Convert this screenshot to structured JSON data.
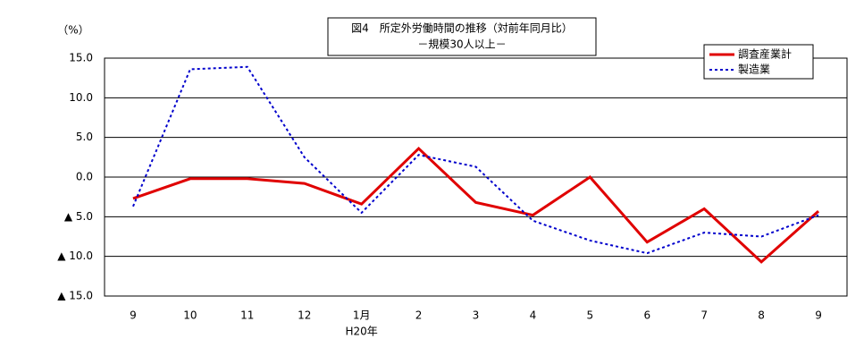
{
  "chart_data": {
    "type": "line",
    "title": "図4　所定外労働時間の推移（対前年同月比）",
    "subtitle": "－規模30人以上－",
    "y_unit": "（%）",
    "x_annotation": "H20年",
    "categories": [
      "9",
      "10",
      "11",
      "12",
      "1月",
      "2",
      "3",
      "4",
      "5",
      "6",
      "7",
      "8",
      "9"
    ],
    "series": [
      {
        "name": "調査産業計",
        "color": "#e00000",
        "style": "solid",
        "values": [
          -2.7,
          -0.2,
          -0.2,
          -0.8,
          -3.4,
          3.6,
          -3.2,
          -4.8,
          0.0,
          -8.2,
          -4.0,
          -10.7,
          -4.3
        ]
      },
      {
        "name": "製造業",
        "color": "#0000cc",
        "style": "dotted",
        "values": [
          -3.7,
          13.6,
          13.9,
          2.5,
          -4.5,
          2.8,
          1.3,
          -5.5,
          -8.0,
          -9.6,
          -7.0,
          -7.5,
          -4.8
        ]
      }
    ],
    "ylim": [
      -15,
      15
    ],
    "yticks": [
      {
        "value": -15,
        "label": "▲ 15.0"
      },
      {
        "value": -10,
        "label": "▲ 10.0"
      },
      {
        "value": -5,
        "label": "▲ 5.0"
      },
      {
        "value": 0,
        "label": "0.0"
      },
      {
        "value": 5,
        "label": "5.0"
      },
      {
        "value": 10,
        "label": "10.0"
      },
      {
        "value": 15,
        "label": "15.0"
      }
    ],
    "grid": true,
    "legend": "upper right"
  }
}
